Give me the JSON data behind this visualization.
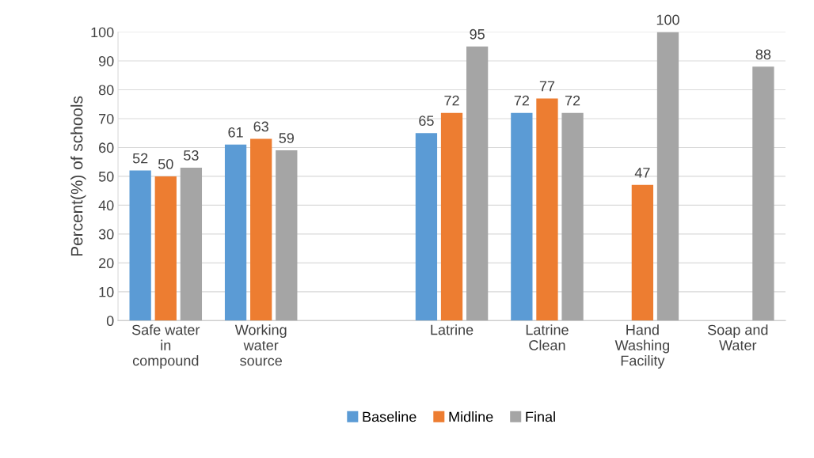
{
  "chart_data": {
    "type": "bar",
    "ylabel": "Percent(%) of schools",
    "categories": [
      "Safe water in compound",
      "Working water source",
      null,
      "Latrine",
      "Latrine Clean",
      "Hand Washing Facility",
      "Soap and Water"
    ],
    "series": [
      {
        "name": "Baseline",
        "color": "#5b9bd5",
        "values": [
          52,
          61,
          null,
          65,
          72,
          null,
          null
        ]
      },
      {
        "name": "Midline",
        "color": "#ed7d31",
        "values": [
          50,
          63,
          null,
          72,
          77,
          47,
          null
        ]
      },
      {
        "name": "Final",
        "color": "#a5a5a5",
        "values": [
          53,
          59,
          null,
          95,
          72,
          100,
          88
        ]
      }
    ],
    "ylim": [
      0,
      100
    ],
    "yticks": [
      0,
      10,
      20,
      30,
      40,
      50,
      60,
      70,
      80,
      90,
      100
    ],
    "grid": "y",
    "legend": "bottom",
    "data_labels": true
  }
}
